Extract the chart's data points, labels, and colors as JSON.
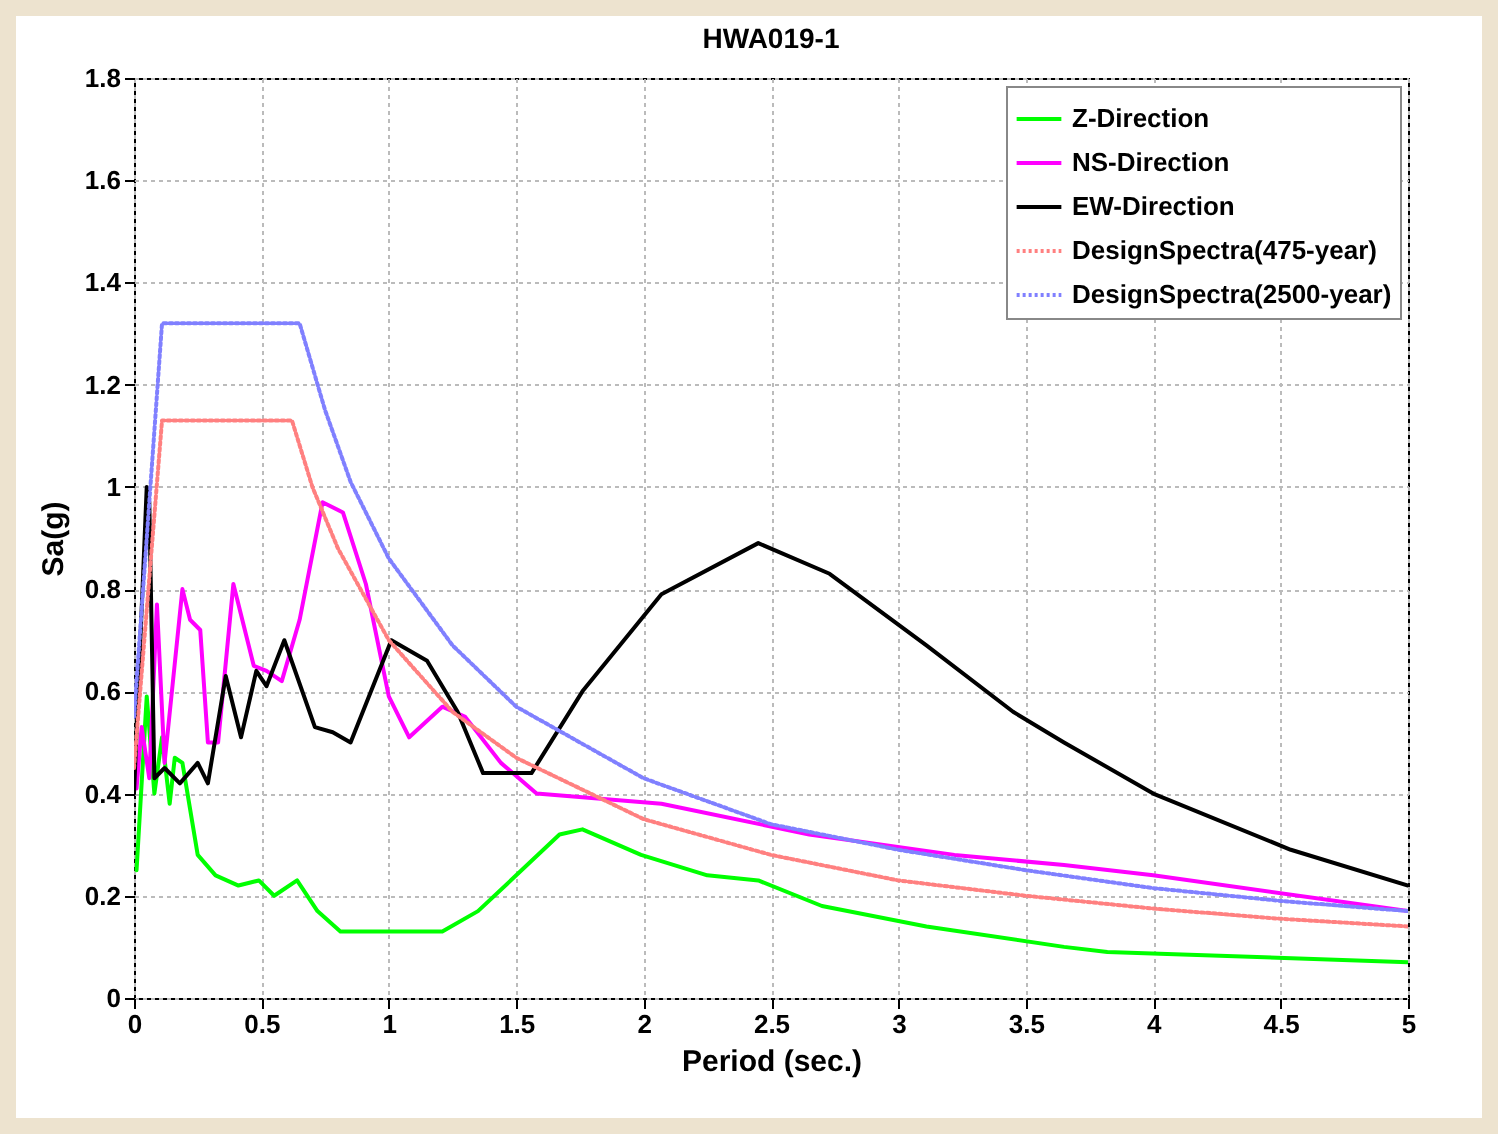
{
  "chart_data": {
    "type": "line",
    "title": "HWA019-1",
    "xlabel": "Period (sec.)",
    "ylabel": "Sa(g)",
    "xlim": [
      0,
      5
    ],
    "ylim": [
      0,
      1.8
    ],
    "xticks": [
      0,
      0.5,
      1,
      1.5,
      2,
      2.5,
      3,
      3.5,
      4,
      4.5,
      5
    ],
    "yticks": [
      0,
      0.2,
      0.4,
      0.6,
      0.8,
      1,
      1.2,
      1.4,
      1.6,
      1.8
    ],
    "grid": true,
    "legend": "top right",
    "marker": "none",
    "series": [
      {
        "name": "Z-Direction",
        "color": "#00ff00",
        "line_style": "solid",
        "x": [
          0.01,
          0.05,
          0.08,
          0.11,
          0.14,
          0.16,
          0.19,
          0.25,
          0.32,
          0.41,
          0.49,
          0.55,
          0.64,
          0.72,
          0.81,
          1.04,
          1.21,
          1.35,
          1.5,
          1.67,
          1.76,
          1.99,
          2.25,
          2.45,
          2.7,
          3.11,
          3.65,
          3.82,
          5
        ],
        "values": [
          0.25,
          0.59,
          0.4,
          0.51,
          0.38,
          0.47,
          0.46,
          0.28,
          0.24,
          0.22,
          0.23,
          0.2,
          0.23,
          0.17,
          0.13,
          0.13,
          0.13,
          0.17,
          0.24,
          0.32,
          0.33,
          0.28,
          0.24,
          0.23,
          0.18,
          0.14,
          0.1,
          0.09,
          0.07
        ]
      },
      {
        "name": "NS-Direction",
        "color": "#ff00ff",
        "line_style": "solid",
        "x": [
          0.01,
          0.03,
          0.06,
          0.09,
          0.12,
          0.19,
          0.22,
          0.26,
          0.29,
          0.33,
          0.39,
          0.47,
          0.52,
          0.58,
          0.65,
          0.74,
          0.82,
          0.91,
          1,
          1.08,
          1.21,
          1.3,
          1.44,
          1.58,
          2.07,
          2.65,
          3.22,
          3.65,
          4,
          5
        ],
        "values": [
          0.41,
          0.53,
          0.43,
          0.77,
          0.46,
          0.8,
          0.74,
          0.72,
          0.5,
          0.5,
          0.81,
          0.65,
          0.64,
          0.62,
          0.74,
          0.97,
          0.95,
          0.81,
          0.59,
          0.51,
          0.57,
          0.55,
          0.46,
          0.4,
          0.38,
          0.32,
          0.28,
          0.26,
          0.24,
          0.17
        ]
      },
      {
        "name": "EW-Direction",
        "color": "#000000",
        "line_style": "solid",
        "x": [
          0,
          0.02,
          0.05,
          0.06,
          0.08,
          0.12,
          0.18,
          0.25,
          0.29,
          0.36,
          0.42,
          0.48,
          0.52,
          0.59,
          0.71,
          0.78,
          0.85,
          1.01,
          1.15,
          1.27,
          1.37,
          1.56,
          1.76,
          2.07,
          2.45,
          2.73,
          3.11,
          3.45,
          3.65,
          4,
          4.54,
          5
        ],
        "values": [
          0.4,
          0.64,
          1,
          0.97,
          0.43,
          0.45,
          0.42,
          0.46,
          0.42,
          0.63,
          0.51,
          0.64,
          0.61,
          0.7,
          0.53,
          0.52,
          0.5,
          0.7,
          0.66,
          0.56,
          0.44,
          0.44,
          0.6,
          0.79,
          0.89,
          0.83,
          0.69,
          0.56,
          0.5,
          0.4,
          0.29,
          0.22
        ]
      },
      {
        "name": "DesignSpectra(475-year)",
        "color": "#ff8080",
        "line_style": "dotted",
        "x": [
          0,
          0.11,
          0.62,
          0.7,
          0.8,
          1,
          1.25,
          1.5,
          2,
          2.5,
          3,
          3.5,
          4,
          4.5,
          5
        ],
        "values": [
          0.45,
          1.13,
          1.13,
          1,
          0.88,
          0.7,
          0.56,
          0.47,
          0.35,
          0.28,
          0.23,
          0.2,
          0.175,
          0.155,
          0.14
        ]
      },
      {
        "name": "DesignSpectra(2500-year)",
        "color": "#8080ff",
        "line_style": "dotted",
        "x": [
          0,
          0.11,
          0.65,
          0.75,
          0.85,
          1,
          1.25,
          1.5,
          2,
          2.5,
          3,
          3.5,
          4,
          4.5,
          5
        ],
        "values": [
          0.55,
          1.32,
          1.32,
          1.15,
          1.01,
          0.86,
          0.69,
          0.57,
          0.43,
          0.34,
          0.29,
          0.25,
          0.215,
          0.19,
          0.17
        ]
      }
    ]
  }
}
